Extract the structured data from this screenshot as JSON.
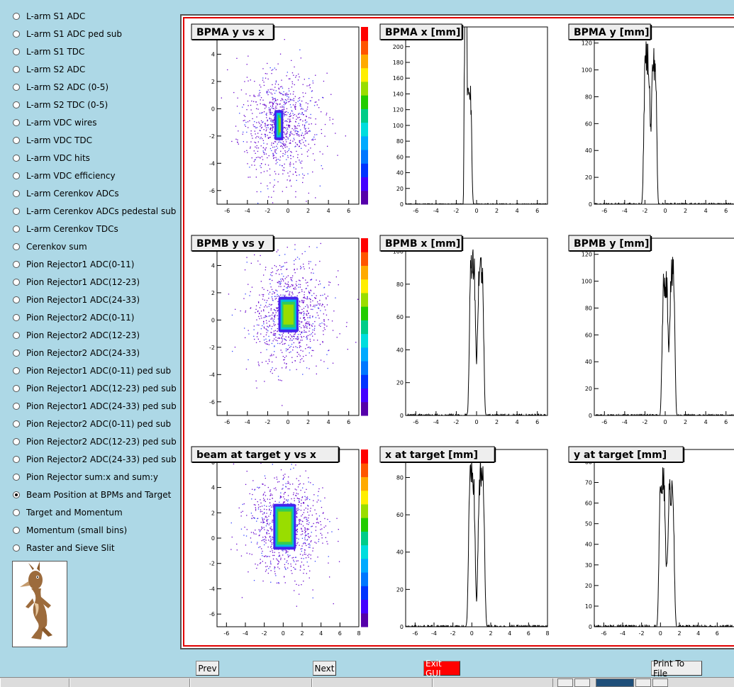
{
  "sidebar": {
    "items": [
      {
        "label": "L-arm S1 ADC",
        "selected": false
      },
      {
        "label": "L-arm S1 ADC ped sub",
        "selected": false
      },
      {
        "label": "L-arm S1 TDC",
        "selected": false
      },
      {
        "label": "L-arm S2 ADC",
        "selected": false
      },
      {
        "label": "L-arm S2 ADC (0-5)",
        "selected": false
      },
      {
        "label": "L-arm S2 TDC (0-5)",
        "selected": false
      },
      {
        "label": "L-arm VDC wires",
        "selected": false
      },
      {
        "label": "L-arm VDC TDC",
        "selected": false
      },
      {
        "label": "L-arm VDC hits",
        "selected": false
      },
      {
        "label": "L-arm VDC efficiency",
        "selected": false
      },
      {
        "label": "L-arm Cerenkov ADCs",
        "selected": false
      },
      {
        "label": "L-arm Cerenkov ADCs pedestal sub",
        "selected": false
      },
      {
        "label": "L-arm Cerenkov TDCs",
        "selected": false
      },
      {
        "label": "Cerenkov sum",
        "selected": false
      },
      {
        "label": "Pion Rejector1 ADC(0-11)",
        "selected": false
      },
      {
        "label": "Pion Rejector1 ADC(12-23)",
        "selected": false
      },
      {
        "label": "Pion Rejector1 ADC(24-33)",
        "selected": false
      },
      {
        "label": "Pion Rejector2 ADC(0-11)",
        "selected": false
      },
      {
        "label": "Pion Rejector2 ADC(12-23)",
        "selected": false
      },
      {
        "label": "Pion Rejector2 ADC(24-33)",
        "selected": false
      },
      {
        "label": "Pion Rejector1 ADC(0-11) ped sub",
        "selected": false
      },
      {
        "label": "Pion Rejector1 ADC(12-23) ped sub",
        "selected": false
      },
      {
        "label": "Pion Rejector1 ADC(24-33) ped sub",
        "selected": false
      },
      {
        "label": "Pion Rejector2 ADC(0-11) ped sub",
        "selected": false
      },
      {
        "label": "Pion Rejector2 ADC(12-23) ped sub",
        "selected": false
      },
      {
        "label": "Pion Rejector2 ADC(24-33) ped sub",
        "selected": false
      },
      {
        "label": "Pion Rejector sum:x and sum:y",
        "selected": false
      },
      {
        "label": "Beam Position at BPMs and Target",
        "selected": true
      },
      {
        "label": "Target and Momentum",
        "selected": false
      },
      {
        "label": "Momentum (small bins)",
        "selected": false
      },
      {
        "label": "Raster and Sieve Slit",
        "selected": false
      }
    ],
    "logo_icon": "coyote-icon"
  },
  "buttons": {
    "prev": "Prev",
    "next": "Next",
    "exit": "Exit GUI",
    "print": "Print To File"
  },
  "colors": {
    "background": "#add8e6",
    "canvas_frame": "#e00000",
    "exit_button": "#ff0000"
  },
  "chart_data": [
    {
      "type": "heatmap",
      "title": "BPMA y vs x",
      "xticks": [
        "-6",
        "-4",
        "-2",
        "0",
        "2",
        "4",
        "6"
      ],
      "yticks": [
        "4",
        "2",
        "0",
        "-2",
        "-4",
        "-6"
      ],
      "xlim": [
        -7,
        7
      ],
      "ylim": [
        -7,
        6
      ],
      "core": {
        "x": [
          -1.2,
          -0.6
        ],
        "y": [
          -2.2,
          -0.2
        ]
      }
    },
    {
      "type": "line",
      "title": "BPMA x [mm]",
      "xticks": [
        "-6",
        "-4",
        "-2",
        "0",
        "2",
        "4",
        "6"
      ],
      "yticks": [
        "0",
        "20",
        "40",
        "60",
        "80",
        "100",
        "120",
        "140",
        "160",
        "180",
        "200",
        "220"
      ],
      "xlim": [
        -7,
        7
      ],
      "ylim": [
        0,
        225
      ],
      "peaks": [
        {
          "x": -1.1,
          "y": 230,
          "w": 0.15
        },
        {
          "x": -0.75,
          "y": 150,
          "w": 0.3
        }
      ]
    },
    {
      "type": "line",
      "title": "BPMA y [mm]",
      "xticks": [
        "-6",
        "-4",
        "-2",
        "0",
        "2",
        "4",
        "6"
      ],
      "yticks": [
        "0",
        "20",
        "40",
        "60",
        "80",
        "100",
        "120"
      ],
      "xlim": [
        -7,
        7
      ],
      "ylim": [
        0,
        132
      ],
      "peaks": [
        {
          "x": -1.8,
          "y": 110,
          "w": 0.35
        },
        {
          "x": -1.1,
          "y": 105,
          "w": 0.3
        }
      ]
    },
    {
      "type": "heatmap",
      "title": "BPMB y vs y",
      "xticks": [
        "-6",
        "-4",
        "-2",
        "0",
        "2",
        "4",
        "6"
      ],
      "yticks": [
        "4",
        "2",
        "0",
        "-2",
        "-4",
        "-6"
      ],
      "xlim": [
        -7,
        7
      ],
      "ylim": [
        -7,
        6
      ],
      "core": {
        "x": [
          -0.8,
          0.9
        ],
        "y": [
          -0.8,
          1.6
        ]
      }
    },
    {
      "type": "line",
      "title": "BPMB x [mm]",
      "xticks": [
        "-6",
        "-4",
        "-2",
        "0",
        "2",
        "4",
        "6"
      ],
      "yticks": [
        "0",
        "20",
        "40",
        "60",
        "80",
        "100"
      ],
      "xlim": [
        -7,
        7
      ],
      "ylim": [
        0,
        108
      ],
      "peaks": [
        {
          "x": -0.4,
          "y": 95,
          "w": 0.35
        },
        {
          "x": 0.4,
          "y": 90,
          "w": 0.35
        }
      ]
    },
    {
      "type": "line",
      "title": "BPMB y [mm]",
      "xticks": [
        "-6",
        "-4",
        "-2",
        "0",
        "2",
        "4",
        "6"
      ],
      "yticks": [
        "0",
        "20",
        "40",
        "60",
        "80",
        "100",
        "120"
      ],
      "xlim": [
        -7,
        7
      ],
      "ylim": [
        0,
        132
      ],
      "peaks": [
        {
          "x": 0,
          "y": 100,
          "w": 0.35
        },
        {
          "x": 0.7,
          "y": 105,
          "w": 0.3
        }
      ]
    },
    {
      "type": "heatmap",
      "title": "beam at target y vs x",
      "xticks": [
        "-6",
        "-4",
        "-2",
        "0",
        "2",
        "4",
        "6",
        "8"
      ],
      "yticks": [
        "6",
        "4",
        "2",
        "0",
        "-2",
        "-4",
        "-6"
      ],
      "xlim": [
        -7,
        8
      ],
      "ylim": [
        -7,
        7
      ],
      "core": {
        "x": [
          -0.9,
          1.2
        ],
        "y": [
          -0.8,
          2.6
        ]
      }
    },
    {
      "type": "line",
      "title": "x at target [mm]",
      "xticks": [
        "-6",
        "-4",
        "-2",
        "0",
        "2",
        "4",
        "6",
        "8"
      ],
      "yticks": [
        "0",
        "20",
        "40",
        "60",
        "80"
      ],
      "xlim": [
        -7,
        8
      ],
      "ylim": [
        0,
        95
      ],
      "peaks": [
        {
          "x": 0,
          "y": 80,
          "w": 0.4
        },
        {
          "x": 1,
          "y": 80,
          "w": 0.4
        }
      ]
    },
    {
      "type": "line",
      "title": "y at target [mm]",
      "xticks": [
        "-6",
        "-4",
        "-2",
        "0",
        "2",
        "4",
        "6",
        "8"
      ],
      "yticks": [
        "0",
        "10",
        "20",
        "30",
        "40",
        "50",
        "60",
        "70",
        "80"
      ],
      "xlim": [
        -7,
        8
      ],
      "ylim": [
        0,
        86
      ],
      "peaks": [
        {
          "x": 0.2,
          "y": 70,
          "w": 0.4
        },
        {
          "x": 1.1,
          "y": 65,
          "w": 0.4
        }
      ]
    }
  ]
}
